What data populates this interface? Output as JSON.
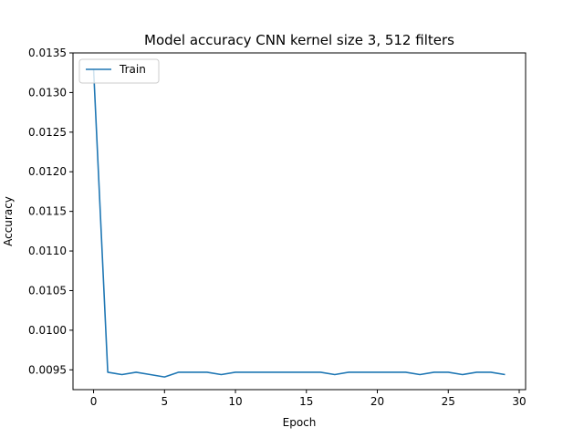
{
  "chart_data": {
    "type": "line",
    "title": "Model accuracy CNN kernel size 3, 512 filters",
    "xlabel": "Epoch",
    "ylabel": "Accuracy",
    "xlim": [
      -1.45,
      30.45
    ],
    "ylim": [
      0.00925,
      0.0135
    ],
    "xticks": [
      0,
      5,
      10,
      15,
      20,
      25,
      30
    ],
    "yticks": [
      0.0095,
      0.01,
      0.0105,
      0.011,
      0.0115,
      0.012,
      0.0125,
      0.013,
      0.0135
    ],
    "ytick_labels": [
      "0.0095",
      "0.0100",
      "0.0105",
      "0.0110",
      "0.0115",
      "0.0120",
      "0.0125",
      "0.0130",
      "0.0135"
    ],
    "legend_position": "upper-left",
    "grid": false,
    "series": [
      {
        "name": "Train",
        "color": "#1f77b4",
        "x": [
          0,
          1,
          2,
          3,
          4,
          5,
          6,
          7,
          8,
          9,
          10,
          11,
          12,
          13,
          14,
          15,
          16,
          17,
          18,
          19,
          20,
          21,
          22,
          23,
          24,
          25,
          26,
          27,
          28,
          29
        ],
        "values": [
          0.0133,
          0.00947,
          0.00944,
          0.00947,
          0.00944,
          0.00941,
          0.00947,
          0.00947,
          0.00947,
          0.00944,
          0.00947,
          0.00947,
          0.00947,
          0.00947,
          0.00947,
          0.00947,
          0.00947,
          0.00944,
          0.00947,
          0.00947,
          0.00947,
          0.00947,
          0.00947,
          0.00944,
          0.00947,
          0.00947,
          0.00944,
          0.00947,
          0.00947,
          0.00944
        ]
      }
    ]
  }
}
